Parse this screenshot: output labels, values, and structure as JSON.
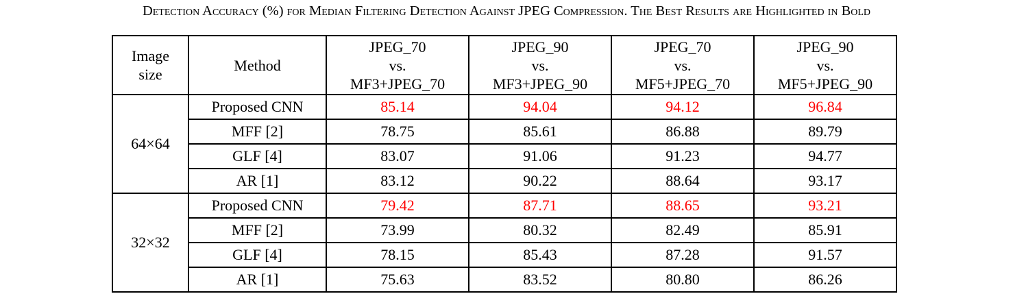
{
  "caption": "Detection Accuracy (%) for Median Filtering Detection Against JPEG Compression. The Best Results are Highlighted in Bold",
  "table": {
    "headers": {
      "image_size": [
        "Image",
        "size"
      ],
      "method": "Method",
      "columns": [
        [
          "JPEG_70",
          "vs.",
          "MF3+JPEG_70"
        ],
        [
          "JPEG_90",
          "vs.",
          "MF3+JPEG_90"
        ],
        [
          "JPEG_70",
          "vs.",
          "MF5+JPEG_70"
        ],
        [
          "JPEG_90",
          "vs.",
          "MF5+JPEG_90"
        ]
      ]
    },
    "groups": [
      {
        "size": "64×64",
        "rows": [
          {
            "method": "Proposed CNN",
            "values": [
              "85.14",
              "94.04",
              "94.12",
              "96.84"
            ],
            "best": true
          },
          {
            "method": "MFF [2]",
            "values": [
              "78.75",
              "85.61",
              "86.88",
              "89.79"
            ],
            "best": false
          },
          {
            "method": "GLF [4]",
            "values": [
              "83.07",
              "91.06",
              "91.23",
              "94.77"
            ],
            "best": false
          },
          {
            "method": "AR [1]",
            "values": [
              "83.12",
              "90.22",
              "88.64",
              "93.17"
            ],
            "best": false
          }
        ]
      },
      {
        "size": "32×32",
        "rows": [
          {
            "method": "Proposed CNN",
            "values": [
              "79.42",
              "87.71",
              "88.65",
              "93.21"
            ],
            "best": true
          },
          {
            "method": "MFF [2]",
            "values": [
              "73.99",
              "80.32",
              "82.49",
              "85.91"
            ],
            "best": false
          },
          {
            "method": "GLF [4]",
            "values": [
              "78.15",
              "85.43",
              "87.28",
              "91.57"
            ],
            "best": false
          },
          {
            "method": "AR [1]",
            "values": [
              "75.63",
              "83.52",
              "80.80",
              "86.26"
            ],
            "best": false
          }
        ]
      }
    ],
    "highlight_color": "#ff0000"
  }
}
